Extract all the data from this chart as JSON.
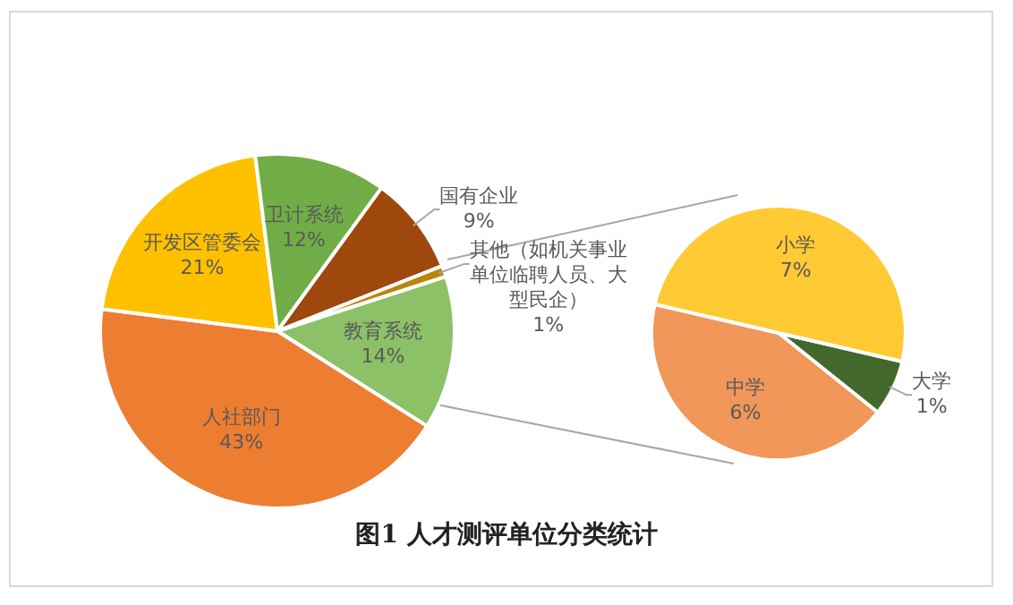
{
  "chart_data": [
    {
      "type": "pie",
      "title": "图1 人才测评单位分类统计",
      "categories": [
        "教育系统",
        "人社部门",
        "开发区管委会",
        "卫计系统",
        "国有企业",
        "其他（如机关事业单位临聘人员、大型民企）"
      ],
      "values": [
        14,
        43,
        21,
        12,
        9,
        1
      ],
      "value_labels": [
        "14%",
        "43%",
        "21%",
        "12%",
        "9%",
        "1%"
      ],
      "colors": [
        "#8cc168",
        "#ed7d31",
        "#ffc000",
        "#70ad47",
        "#9e480e",
        "#b8860b"
      ],
      "legend": false
    },
    {
      "type": "pie",
      "categories": [
        "大学",
        "中学",
        "小学"
      ],
      "values": [
        1,
        6,
        7
      ],
      "value_labels": [
        "1%",
        "6%",
        "7%"
      ],
      "colors": [
        "#43682b",
        "#f1975a",
        "#ffca33"
      ],
      "legend": false
    }
  ]
}
